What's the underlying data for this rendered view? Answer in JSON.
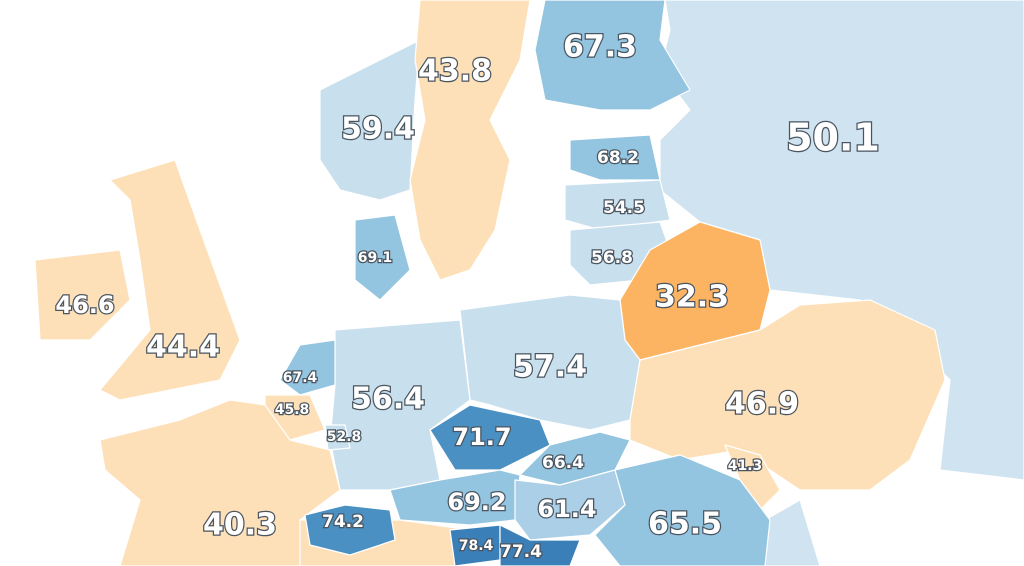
{
  "map": {
    "regions": [
      {
        "value": 67.3,
        "color": "#93c4e0"
      },
      {
        "value": 43.8,
        "color": "#fde0b8"
      },
      {
        "value": 59.4,
        "color": "#c8dfee"
      },
      {
        "value": 50.1,
        "color": "#cfe3f0"
      },
      {
        "value": 68.2,
        "color": "#93c4e0"
      },
      {
        "value": 54.5,
        "color": "#c8dfee"
      },
      {
        "value": 56.8,
        "color": "#c8dfee"
      },
      {
        "value": 32.3,
        "color": "#fdb462"
      },
      {
        "value": 69.1,
        "color": "#93c4e0"
      },
      {
        "value": 46.6,
        "color": "#fde0b8"
      },
      {
        "value": 44.4,
        "color": "#fde0b8"
      },
      {
        "value": 67.4,
        "color": "#93c4e0"
      },
      {
        "value": 56.4,
        "color": "#c8dfee"
      },
      {
        "value": 57.4,
        "color": "#c8dfee"
      },
      {
        "value": 46.9,
        "color": "#fde0b8"
      },
      {
        "value": 45.8,
        "color": "#fde0b8"
      },
      {
        "value": 52.8,
        "color": "#c8dfee"
      },
      {
        "value": 71.7,
        "color": "#4a90c2"
      },
      {
        "value": 66.4,
        "color": "#93c4e0"
      },
      {
        "value": 41.3,
        "color": "#fde0b8"
      },
      {
        "value": 40.3,
        "color": "#fde0b8"
      },
      {
        "value": 74.2,
        "color": "#4a90c2"
      },
      {
        "value": 69.2,
        "color": "#93c4e0"
      },
      {
        "value": 61.4,
        "color": "#aacfe6"
      },
      {
        "value": 65.5,
        "color": "#93c4e0"
      },
      {
        "value": 78.4,
        "color": "#3a7fb8"
      },
      {
        "value": 77.4,
        "color": "#3a7fb8"
      }
    ]
  }
}
